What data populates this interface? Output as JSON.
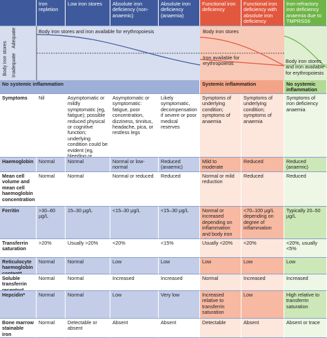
{
  "header": {
    "columns": [
      "Iron repletion",
      "Low iron stores",
      "Absolute iron deficiency (non-anaemic)",
      "Absolute iron deficiency (anaemia)",
      "Functional iron deficiency",
      "Functional iron deficiency with absolute iron deficiency",
      "Iron-refractory iron deficiency anaemia due to TMPRSS6 variants"
    ]
  },
  "graph": {
    "axis_label": "Body iron stores",
    "adequate": "Adequate",
    "inadequate": "Inadequate",
    "left_text": "Body iron stores and iron available for erythropoiesis",
    "stores_text": "Body iron stores",
    "available_text": "Iron available for erythropoiesis",
    "right_text": "Body iron stores and iron available for erythropoiesis"
  },
  "bands": [
    "No systemic inflammation",
    "Systemic inflammation",
    "No systemic inflammation"
  ],
  "table": {
    "rows": [
      {
        "label": "Symptoms",
        "cells": [
          "Nil",
          "Asymptomatic or mildly symptomatic (eg, fatigue); possible reduced physical or cognitive function; underlying condition could be evident (eg, bleeding or nutrition)",
          "Asymptomatic or symptomatic: fatigue, poor concentration, dizziness, tinnitus, headache, pica, or restless legs",
          "Likely symptomatic, decompensation if severe or poor medical reserves",
          "Symptoms of underlying condition; symptoms of anaemia",
          "Symptoms of underlying condition; symptoms of anaemia",
          "Symptoms of iron deficiency anaemia"
        ]
      },
      {
        "label": "Haemoglobin",
        "cells": [
          "Normal",
          "Normal",
          "Normal or low-normal",
          "Reduced (anaemic)",
          "Mild to moderate anaemia",
          "Reduced",
          "Reduced (anaemic)"
        ]
      },
      {
        "label": "Mean cell volume and mean cell haemoglobin concentration",
        "cells": [
          "Normal",
          "Normal",
          "Normal or reduced",
          "Reduced",
          "Normal or mild reduction",
          "Reduced",
          "Reduced"
        ]
      },
      {
        "label": "Ferritin",
        "cells": [
          ">30–60 μg/L",
          "15–30 μg/L",
          "<15–30 μg/L",
          "<15–30 μg/L",
          "Normal or increased depending on inflammation and body iron stores",
          "<70–100 μg/L depending on degree of inflammation",
          "Typically 20–50 μg/L"
        ]
      },
      {
        "label": "Transferrin saturation",
        "cells": [
          ">20%",
          "Usually >20%",
          "<20%",
          "<15%",
          "Usually <20%",
          "<20%",
          "<20%, usually <5%"
        ]
      },
      {
        "label": "Reticulocyte haemoglobin content*",
        "cells": [
          "Normal",
          "Normal",
          "Low",
          "Low",
          "Low",
          "Low",
          "Low"
        ]
      },
      {
        "label": "Soluble transferrin receptor*",
        "cells": [
          "Normal",
          "Normal",
          "Increased",
          "Increased",
          "Normal",
          "Increased",
          "Increased"
        ]
      },
      {
        "label": "Hepcidin*",
        "cells": [
          "Normal",
          "Normal",
          "Low",
          "Very low",
          "Increased relative to transferrin saturation",
          "Low",
          "High relative to transferrin saturation"
        ]
      },
      {
        "label": "Bone marrow stainable iron",
        "cells": [
          "Normal",
          "Detectable or absent",
          "Absent",
          "Absent",
          "Detectable",
          "Absent",
          "Absent or trace"
        ]
      }
    ]
  }
}
